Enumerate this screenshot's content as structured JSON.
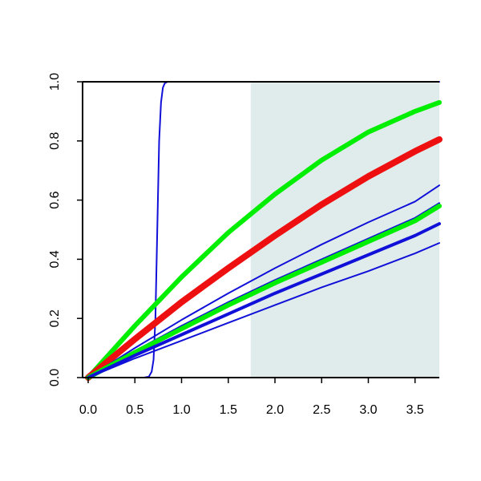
{
  "chart_data": {
    "type": "line",
    "title": "",
    "xlabel": "",
    "ylabel": "",
    "xlim": [
      -0.06,
      3.76
    ],
    "ylim": [
      0.0,
      1.0
    ],
    "grid": false,
    "x_ticks": [
      0.0,
      0.5,
      1.0,
      1.5,
      2.0,
      2.5,
      3.0,
      3.5
    ],
    "x_tick_labels": [
      "0.0",
      "0.5",
      "1.0",
      "1.5",
      "2.0",
      "2.5",
      "3.0",
      "3.5"
    ],
    "y_ticks": [
      0.0,
      0.2,
      0.4,
      0.6,
      0.8,
      1.0
    ],
    "y_tick_labels": [
      "0.0",
      "0.2",
      "0.4",
      "0.6",
      "0.8",
      "1.0"
    ],
    "shaded_region": {
      "x_start": 1.74,
      "x_end": 3.76,
      "color": "#e0ecec"
    },
    "colors": {
      "blue": "#1010d8",
      "green": "#00ee00",
      "red": "#ee1010"
    },
    "series": [
      {
        "color": "#1010d8",
        "width": 2,
        "x": [
          0.0,
          0.6,
          0.65,
          0.68,
          0.7,
          0.72,
          0.74,
          0.76,
          0.78,
          0.8,
          0.82,
          0.85,
          0.9,
          3.76
        ],
        "y": [
          0.0,
          0.0,
          0.003,
          0.02,
          0.06,
          0.2,
          0.5,
          0.8,
          0.93,
          0.98,
          0.995,
          1.0,
          1.0,
          1.0
        ]
      },
      {
        "color": "#00ee00",
        "width": 6,
        "x": [
          0.0,
          0.5,
          1.0,
          1.5,
          2.0,
          2.5,
          3.0,
          3.5,
          3.76
        ],
        "y": [
          0.0,
          0.175,
          0.34,
          0.49,
          0.62,
          0.735,
          0.83,
          0.9,
          0.93
        ]
      },
      {
        "color": "#ee1010",
        "width": 8,
        "x": [
          0.0,
          0.5,
          1.0,
          1.5,
          2.0,
          2.5,
          3.0,
          3.5,
          3.76
        ],
        "y": [
          0.0,
          0.13,
          0.255,
          0.37,
          0.48,
          0.585,
          0.68,
          0.765,
          0.805
        ]
      },
      {
        "color": "#1010d8",
        "width": 2,
        "x": [
          0.0,
          0.5,
          1.0,
          1.5,
          2.0,
          2.5,
          3.0,
          3.5,
          3.76
        ],
        "y": [
          0.0,
          0.1,
          0.195,
          0.285,
          0.37,
          0.45,
          0.525,
          0.595,
          0.65
        ]
      },
      {
        "color": "#1010d8",
        "width": 2,
        "x": [
          0.0,
          0.5,
          1.0,
          1.5,
          2.0,
          2.5,
          3.0,
          3.5,
          3.76
        ],
        "y": [
          0.0,
          0.09,
          0.175,
          0.255,
          0.33,
          0.4,
          0.47,
          0.54,
          0.59
        ]
      },
      {
        "color": "#00ee00",
        "width": 6,
        "x": [
          0.0,
          0.5,
          1.0,
          1.5,
          2.0,
          2.5,
          3.0,
          3.5,
          3.76
        ],
        "y": [
          0.0,
          0.085,
          0.165,
          0.245,
          0.32,
          0.39,
          0.46,
          0.53,
          0.58
        ]
      },
      {
        "color": "#1010d8",
        "width": 4,
        "x": [
          0.0,
          0.5,
          1.0,
          1.5,
          2.0,
          2.5,
          3.0,
          3.5,
          3.76
        ],
        "y": [
          0.0,
          0.075,
          0.145,
          0.215,
          0.285,
          0.35,
          0.415,
          0.48,
          0.52
        ]
      },
      {
        "color": "#1010d8",
        "width": 2,
        "x": [
          0.0,
          0.5,
          1.0,
          1.5,
          2.0,
          2.5,
          3.0,
          3.5,
          3.76
        ],
        "y": [
          0.0,
          0.065,
          0.125,
          0.185,
          0.245,
          0.305,
          0.36,
          0.42,
          0.455
        ]
      }
    ]
  }
}
